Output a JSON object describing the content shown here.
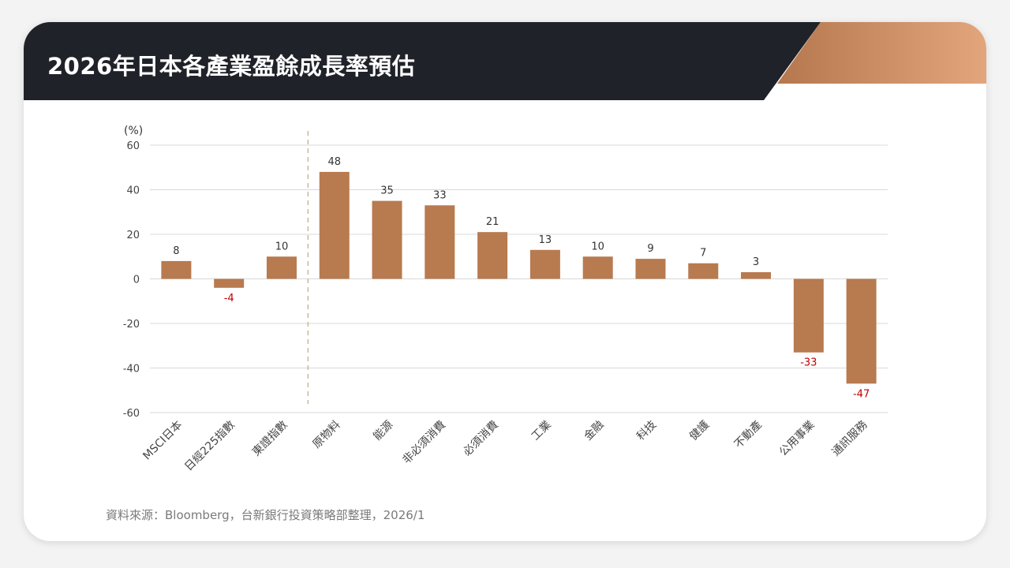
{
  "header": {
    "title": "2026年日本各產業盈餘成長率預估"
  },
  "colors": {
    "header_dark": "#1f2228",
    "accent_start": "#b5774e",
    "accent_end": "#e2a57c",
    "bar": "#b87a4f",
    "negative_label": "#c00000",
    "positive_label": "#333333",
    "gridline": "#d9d9d9",
    "divider": "#c9b99a"
  },
  "chart_data": {
    "type": "bar",
    "unit_label": "(%)",
    "categories": [
      "MSCI日本",
      "日經225指數",
      "東證指數",
      "原物料",
      "能源",
      "非必須消費",
      "必須消費",
      "工業",
      "金融",
      "科技",
      "健護",
      "不動產",
      "公用事業",
      "通訊服務"
    ],
    "values": [
      8,
      -4,
      10,
      48,
      35,
      33,
      21,
      13,
      10,
      9,
      7,
      3,
      -33,
      -47
    ],
    "ylim": [
      -60,
      60
    ],
    "yticks": [
      60,
      40,
      20,
      0,
      -20,
      -40,
      -60
    ],
    "grid": true,
    "divider_after_index": 2
  },
  "footer": {
    "source": "資料來源：Bloomberg，台新銀行投資策略部整理，2026/1"
  }
}
